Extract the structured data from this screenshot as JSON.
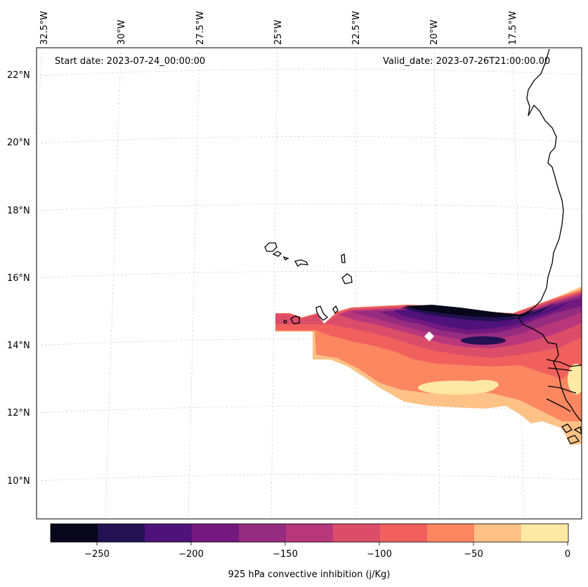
{
  "header": {
    "start_date": "Start date: 2023-07-24_00:00:00",
    "valid_date": "Valid_date: 2023-07-26T21:00:00.00"
  },
  "longitude_labels": [
    "32.5°W",
    "30°W",
    "27.5°W",
    "25°W",
    "22.5°W",
    "20°W",
    "17.5°W"
  ],
  "latitude_labels": [
    "22°N",
    "20°N",
    "18°N",
    "16°N",
    "14°N",
    "12°N",
    "10°N"
  ],
  "colorbar": {
    "label": "925 hPa convective inhibition (j/Kg)",
    "tick_labels": [
      "−250",
      "−200",
      "−150",
      "−100",
      "−50",
      "0"
    ],
    "levels": [
      -275,
      -250,
      -225,
      -200,
      -175,
      -150,
      -125,
      -100,
      -75,
      -50,
      -25,
      0
    ],
    "colors": [
      "#07061a",
      "#231151",
      "#4f127b",
      "#73197f",
      "#952c80",
      "#b8367a",
      "#db4d68",
      "#f1605d",
      "#fb8761",
      "#fec186",
      "#fde8a4"
    ],
    "colormap": "magma"
  },
  "map": {
    "projection": "conic",
    "gridlines": true,
    "land_color": "none",
    "coastline_color": "#000000"
  }
}
